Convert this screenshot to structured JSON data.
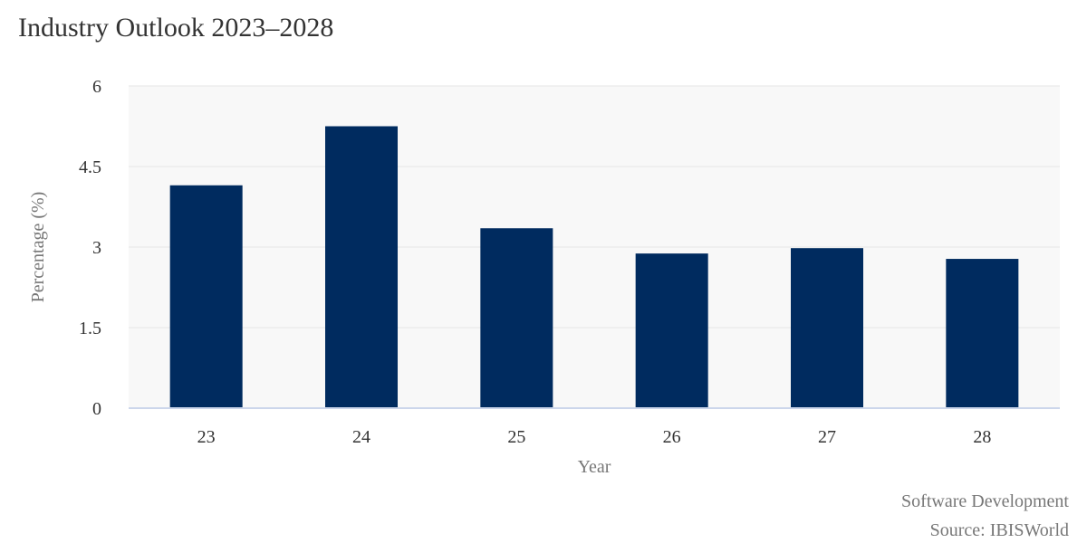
{
  "chart_data": {
    "type": "bar",
    "title": "Industry Outlook 2023–2028",
    "xlabel": "Year",
    "ylabel": "Percentage (%)",
    "categories": [
      "23",
      "24",
      "25",
      "26",
      "27",
      "28"
    ],
    "values": [
      4.15,
      5.25,
      3.35,
      2.88,
      2.98,
      2.78
    ],
    "ylim": [
      0,
      6
    ],
    "yticks": [
      0,
      1.5,
      3,
      4.5,
      6
    ],
    "ytick_labels": [
      "0",
      "1.5",
      "3",
      "4.5",
      "6"
    ],
    "grid": true,
    "colors": {
      "bar": "#002b5f",
      "plot_background": "#f8f8f8",
      "gridline": "#e6e6e6",
      "baseline": "#ccd6eb"
    }
  },
  "footer": {
    "subtitle": "Software Development",
    "source": "Source: IBISWorld"
  }
}
